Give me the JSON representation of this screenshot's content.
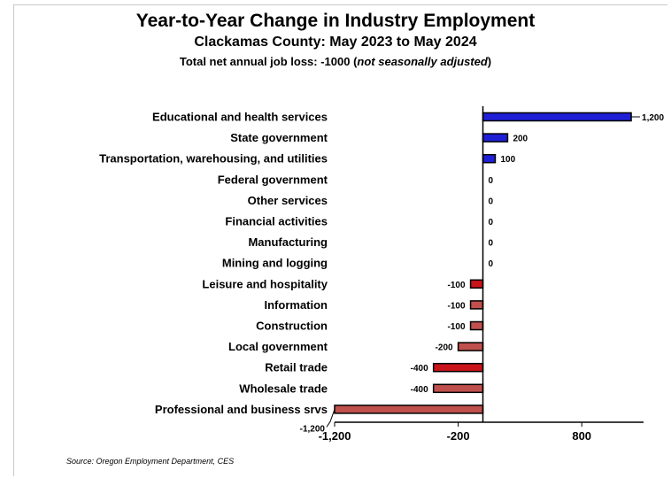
{
  "chart_data": {
    "type": "bar",
    "orientation": "horizontal",
    "title": "Year-to-Year Change in Industry Employment",
    "subtitle": "Clackamas County: May 2023 to May 2024",
    "subtitle2_bold": "Total net annual job loss: -1000 (",
    "subtitle2_italic": "not seasonally adjusted",
    "subtitle2_end": ")",
    "categories": [
      "Educational and health services",
      "State government",
      "Transportation, warehousing, and utilities",
      "Federal government",
      "Other services",
      "Financial activities",
      "Manufacturing",
      "Mining and logging",
      "Leisure and hospitality",
      "Information",
      "Construction",
      "Local government",
      "Retail trade",
      "Wholesale trade",
      "Professional and business srvs"
    ],
    "values": [
      1200,
      200,
      100,
      0,
      0,
      0,
      0,
      0,
      -100,
      -100,
      -100,
      -200,
      -400,
      -400,
      -1200
    ],
    "data_labels": [
      "1,200",
      "200",
      "100",
      "0",
      "0",
      "0",
      "0",
      "0",
      "-100",
      "-100",
      "-100",
      "-200",
      "-400",
      "-400",
      "-1,200"
    ],
    "bar_colors": [
      "#1f1fd6",
      "#1f1fd6",
      "#1f1fd6",
      "#1f1fd6",
      "#1f1fd6",
      "#1f1fd6",
      "#1f1fd6",
      "#1f1fd6",
      "#c8141a",
      "#c0504d",
      "#c0504d",
      "#c0504d",
      "#c8141a",
      "#c0504d",
      "#c0504d"
    ],
    "xlim": [
      -1200,
      1300
    ],
    "x_ticks": [
      -1200,
      -200,
      800
    ],
    "x_tick_labels": [
      "-1,200",
      "-200",
      "800"
    ],
    "grid": false,
    "source": "Source: Oregon Employment Department, CES"
  }
}
